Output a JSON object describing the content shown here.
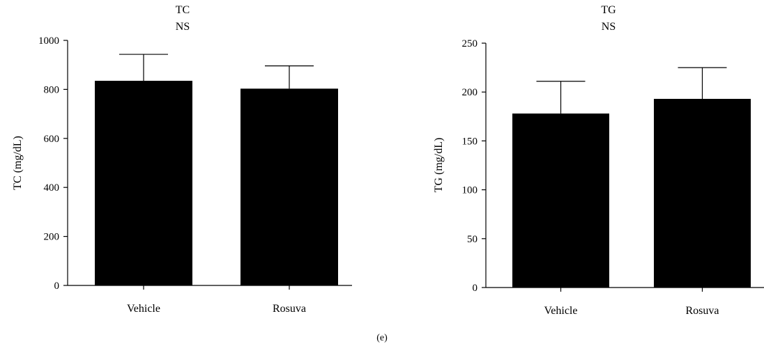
{
  "panel_label": "(e)",
  "chart_data": [
    {
      "type": "bar",
      "title": "TC",
      "subtitle": "NS",
      "xlabel": "",
      "ylabel": "TC (mg/dL)",
      "categories": [
        "Vehicle",
        "Rosuva"
      ],
      "series": [
        {
          "values": [
            835,
            803
          ],
          "error": [
            108,
            93
          ]
        }
      ],
      "ylim": [
        0,
        1000
      ],
      "yticks": [
        0,
        200,
        400,
        600,
        800,
        1000
      ],
      "grid": false,
      "bar_color": "#000000"
    },
    {
      "type": "bar",
      "title": "TG",
      "subtitle": "NS",
      "xlabel": "",
      "ylabel": "TG (mg/dL)",
      "categories": [
        "Vehicle",
        "Rosuva"
      ],
      "series": [
        {
          "values": [
            178,
            193
          ],
          "error": [
            33,
            32
          ]
        }
      ],
      "ylim": [
        0,
        250
      ],
      "yticks": [
        0,
        50,
        100,
        150,
        200,
        250
      ],
      "grid": false,
      "bar_color": "#000000"
    }
  ]
}
